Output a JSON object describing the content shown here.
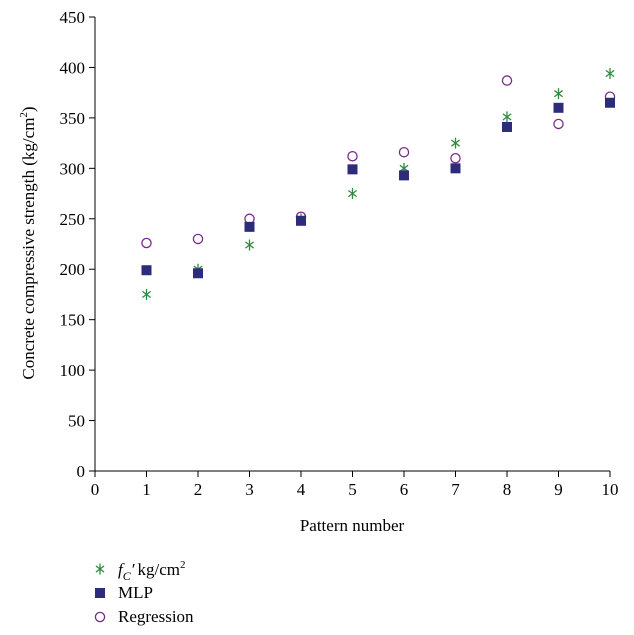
{
  "chart_data": {
    "type": "scatter",
    "xlabel": "Pattern number",
    "ylabel": "Concrete compressive strength (kg/cm",
    "ylabel_sup": "2",
    "ylabel_end": ")",
    "xlim": [
      0,
      10
    ],
    "ylim": [
      0,
      450
    ],
    "x_ticks": [
      0,
      1,
      2,
      3,
      4,
      5,
      6,
      7,
      8,
      9,
      10
    ],
    "y_ticks": [
      0,
      50,
      100,
      150,
      200,
      250,
      300,
      350,
      400,
      450
    ],
    "grid": false,
    "legend_position": "bottom-left",
    "x": [
      1,
      2,
      3,
      4,
      5,
      6,
      7,
      8,
      9,
      10
    ],
    "series": [
      {
        "name": "f'C kg/cm2",
        "legend": {
          "f": "f",
          "sub": "C",
          "prime": "′",
          "unit": "kg/cm",
          "sup": "2"
        },
        "marker": "asterisk",
        "color": "#2e8b3e",
        "values": [
          175,
          200,
          224,
          250,
          275,
          300,
          325,
          351,
          374,
          394
        ]
      },
      {
        "name": "MLP",
        "marker": "square",
        "color": "#2c2c7a",
        "values": [
          199,
          196,
          242,
          248,
          299,
          293,
          300,
          341,
          360,
          365
        ]
      },
      {
        "name": "Regression",
        "marker": "circle",
        "color": "#7a2a8a",
        "values": [
          226,
          230,
          250,
          252,
          312,
          316,
          310,
          387,
          344,
          371
        ]
      }
    ]
  }
}
